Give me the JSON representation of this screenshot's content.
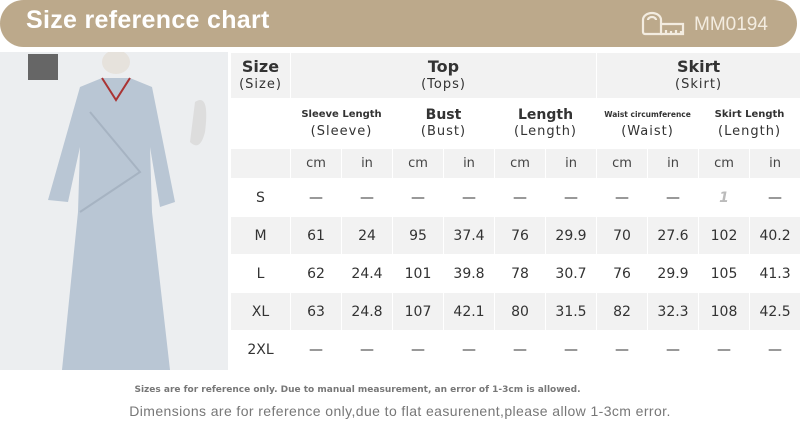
{
  "header": {
    "title": "Size reference chart",
    "code": "MM0194",
    "icon": "measuring-tape-icon",
    "color": "#bca98b"
  },
  "table": {
    "size_label": "Size",
    "size_sub": "(Size)",
    "groups": [
      {
        "label": "Top",
        "sub": "(Tops)"
      },
      {
        "label": "Skirt",
        "sub": "(Skirt)"
      }
    ],
    "measures": [
      {
        "label": "Sleeve Length",
        "sub": "(Sleeve)"
      },
      {
        "label": "Bust",
        "sub": "(Bust)"
      },
      {
        "label": "Length",
        "sub": "(Length)"
      },
      {
        "label": "Waist circumference",
        "sub": "(Waist)"
      },
      {
        "label": "Skirt Length",
        "sub": "(Length)"
      }
    ],
    "units": [
      "cm",
      "in"
    ],
    "rows": [
      {
        "size": "S",
        "values": [
          "—",
          "—",
          "—",
          "—",
          "—",
          "—",
          "—",
          "—",
          "1",
          "—"
        ]
      },
      {
        "size": "M",
        "values": [
          "61",
          "24",
          "95",
          "37.4",
          "76",
          "29.9",
          "70",
          "27.6",
          "102",
          "40.2"
        ]
      },
      {
        "size": "L",
        "values": [
          "62",
          "24.4",
          "101",
          "39.8",
          "78",
          "30.7",
          "76",
          "29.9",
          "105",
          "41.3"
        ]
      },
      {
        "size": "XL",
        "values": [
          "63",
          "24.8",
          "107",
          "42.1",
          "80",
          "31.5",
          "82",
          "32.3",
          "108",
          "42.5"
        ]
      },
      {
        "size": "2XL",
        "values": [
          "—",
          "—",
          "—",
          "—",
          "—",
          "—",
          "—",
          "—",
          "—",
          "—"
        ]
      }
    ]
  },
  "notes": {
    "line1": "Sizes are for reference only. Due to manual measurement, an error of 1-3cm is allowed.",
    "line2": "Dimensions are for reference only,due to flat easurenent,please allow 1-3cm error."
  }
}
